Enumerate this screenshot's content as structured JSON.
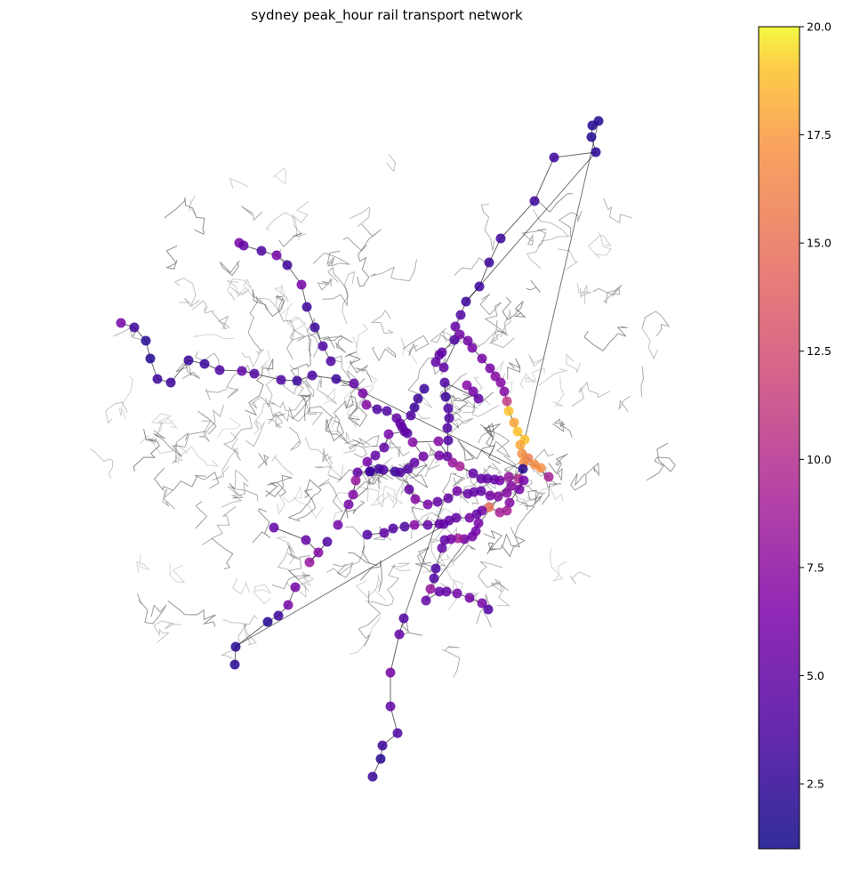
{
  "chart_data": {
    "type": "scatter",
    "title": "sydney peak_hour rail transport network",
    "colormap": "plasma",
    "colorbar": {
      "range": [
        1,
        20
      ],
      "ticks": [
        2.5,
        5.0,
        7.5,
        10.0,
        12.5,
        15.0,
        17.5,
        20.0
      ],
      "tick_labels": [
        "2.5",
        "5.0",
        "7.5",
        "10.0",
        "12.5",
        "15.0",
        "17.5",
        "20.0"
      ]
    },
    "axes_visible": false,
    "grid": false,
    "background_network_color": "#000000",
    "stations": [
      [
        136,
        363,
        6
      ],
      [
        151,
        368,
        3
      ],
      [
        164,
        383,
        2
      ],
      [
        169,
        403,
        2
      ],
      [
        177,
        426,
        3
      ],
      [
        192,
        430,
        3
      ],
      [
        212,
        405,
        3
      ],
      [
        230,
        409,
        3
      ],
      [
        247,
        416,
        4
      ],
      [
        272,
        417,
        5
      ],
      [
        286,
        420,
        4
      ],
      [
        316,
        427,
        4
      ],
      [
        334,
        428,
        3
      ],
      [
        351,
        422,
        4
      ],
      [
        378,
        426,
        3
      ],
      [
        398,
        431,
        5
      ],
      [
        408,
        442,
        6
      ],
      [
        412,
        455,
        7
      ],
      [
        424,
        460,
        4
      ],
      [
        435,
        462,
        4
      ],
      [
        446,
        470,
        5
      ],
      [
        452,
        480,
        4
      ],
      [
        458,
        487,
        4
      ],
      [
        269,
        273,
        6
      ],
      [
        274,
        276,
        5
      ],
      [
        294,
        282,
        4
      ],
      [
        311,
        287,
        6
      ],
      [
        323,
        298,
        3
      ],
      [
        339,
        320,
        6
      ],
      [
        345,
        345,
        3
      ],
      [
        354,
        368,
        3
      ],
      [
        363,
        389,
        4
      ],
      [
        372,
        406,
        4
      ],
      [
        673,
        136,
        2
      ],
      [
        666,
        141,
        2
      ],
      [
        665,
        154,
        2
      ],
      [
        670,
        171,
        2
      ],
      [
        623,
        177,
        3
      ],
      [
        601,
        226,
        3
      ],
      [
        563,
        268,
        3
      ],
      [
        550,
        295,
        3
      ],
      [
        539,
        322,
        3
      ],
      [
        524,
        339,
        3
      ],
      [
        518,
        354,
        4
      ],
      [
        512,
        367,
        5
      ],
      [
        511,
        382,
        4
      ],
      [
        497,
        396,
        5
      ],
      [
        494,
        399,
        5
      ],
      [
        490,
        407,
        5
      ],
      [
        499,
        413,
        5
      ],
      [
        517,
        376,
        6
      ],
      [
        526,
        383,
        6
      ],
      [
        531,
        391,
        6
      ],
      [
        542,
        403,
        6
      ],
      [
        551,
        414,
        6
      ],
      [
        557,
        423,
        7
      ],
      [
        563,
        430,
        7
      ],
      [
        567,
        440,
        7
      ],
      [
        570,
        451,
        11
      ],
      [
        572,
        462,
        19
      ],
      [
        578,
        475,
        18
      ],
      [
        582,
        485,
        19
      ],
      [
        590,
        494,
        19
      ],
      [
        585,
        500,
        18
      ],
      [
        594,
        515,
        16
      ],
      [
        601,
        522,
        17
      ],
      [
        608,
        526,
        17
      ],
      [
        589,
        520,
        17
      ],
      [
        587,
        510,
        17
      ],
      [
        617,
        536,
        9
      ],
      [
        525,
        433,
        7
      ],
      [
        532,
        440,
        6
      ],
      [
        538,
        448,
        5
      ],
      [
        500,
        430,
        4
      ],
      [
        501,
        446,
        3
      ],
      [
        504,
        459,
        4
      ],
      [
        505,
        470,
        4
      ],
      [
        503,
        481,
        4
      ],
      [
        504,
        495,
        4
      ],
      [
        503,
        513,
        5
      ],
      [
        494,
        512,
        6
      ],
      [
        477,
        437,
        3
      ],
      [
        470,
        448,
        3
      ],
      [
        466,
        458,
        3
      ],
      [
        462,
        467,
        4
      ],
      [
        450,
        476,
        5
      ],
      [
        455,
        485,
        5
      ],
      [
        437,
        488,
        6
      ],
      [
        432,
        503,
        5
      ],
      [
        422,
        512,
        5
      ],
      [
        413,
        519,
        6
      ],
      [
        416,
        530,
        4
      ],
      [
        402,
        531,
        5
      ],
      [
        400,
        540,
        8
      ],
      [
        397,
        556,
        7
      ],
      [
        392,
        567,
        6
      ],
      [
        380,
        590,
        6
      ],
      [
        308,
        593,
        5
      ],
      [
        344,
        607,
        5
      ],
      [
        358,
        621,
        7
      ],
      [
        348,
        632,
        8
      ],
      [
        368,
        609,
        4
      ],
      [
        332,
        660,
        6
      ],
      [
        324,
        680,
        6
      ],
      [
        313,
        692,
        3
      ],
      [
        301,
        699,
        2
      ],
      [
        265,
        727,
        2
      ],
      [
        264,
        747,
        2
      ],
      [
        416,
        530,
        3
      ],
      [
        426,
        527,
        3
      ],
      [
        431,
        528,
        4
      ],
      [
        444,
        530,
        3
      ],
      [
        450,
        531,
        4
      ],
      [
        459,
        527,
        4
      ],
      [
        466,
        520,
        5
      ],
      [
        476,
        513,
        6
      ],
      [
        464,
        497,
        7
      ],
      [
        493,
        496,
        7
      ],
      [
        509,
        520,
        8
      ],
      [
        517,
        524,
        9
      ],
      [
        532,
        532,
        5
      ],
      [
        541,
        538,
        5
      ],
      [
        548,
        538,
        5
      ],
      [
        556,
        539,
        5
      ],
      [
        562,
        540,
        6
      ],
      [
        572,
        536,
        8
      ],
      [
        583,
        538,
        10
      ],
      [
        588,
        527,
        2
      ],
      [
        584,
        550,
        6
      ],
      [
        460,
        550,
        5
      ],
      [
        467,
        561,
        7
      ],
      [
        481,
        567,
        6
      ],
      [
        492,
        564,
        5
      ],
      [
        504,
        560,
        5
      ],
      [
        514,
        552,
        6
      ],
      [
        526,
        555,
        5
      ],
      [
        533,
        553,
        5
      ],
      [
        541,
        552,
        5
      ],
      [
        551,
        557,
        6
      ],
      [
        560,
        558,
        7
      ],
      [
        570,
        554,
        7
      ],
      [
        575,
        546,
        7
      ],
      [
        589,
        540,
        6
      ],
      [
        573,
        565,
        7
      ],
      [
        570,
        574,
        9
      ],
      [
        562,
        576,
        9
      ],
      [
        550,
        570,
        15
      ],
      [
        542,
        574,
        6
      ],
      [
        536,
        578,
        5
      ],
      [
        528,
        582,
        6
      ],
      [
        513,
        582,
        5
      ],
      [
        505,
        585,
        5
      ],
      [
        499,
        589,
        5
      ],
      [
        494,
        589,
        5
      ],
      [
        481,
        590,
        5
      ],
      [
        466,
        590,
        7
      ],
      [
        455,
        592,
        4
      ],
      [
        442,
        594,
        4
      ],
      [
        432,
        599,
        5
      ],
      [
        413,
        601,
        4
      ],
      [
        538,
        588,
        6
      ],
      [
        535,
        597,
        6
      ],
      [
        531,
        603,
        6
      ],
      [
        522,
        606,
        6
      ],
      [
        515,
        605,
        9
      ],
      [
        507,
        606,
        6
      ],
      [
        500,
        607,
        5
      ],
      [
        497,
        616,
        5
      ],
      [
        490,
        639,
        4
      ],
      [
        488,
        650,
        4
      ],
      [
        484,
        662,
        8
      ],
      [
        479,
        675,
        5
      ],
      [
        494,
        665,
        5
      ],
      [
        502,
        665,
        5
      ],
      [
        514,
        667,
        6
      ],
      [
        528,
        672,
        6
      ],
      [
        542,
        678,
        6
      ],
      [
        549,
        685,
        4
      ],
      [
        454,
        695,
        4
      ],
      [
        449,
        713,
        5
      ],
      [
        439,
        756,
        6
      ],
      [
        439,
        794,
        5
      ],
      [
        447,
        824,
        4
      ],
      [
        430,
        838,
        3
      ],
      [
        428,
        853,
        2
      ],
      [
        419,
        873,
        3
      ]
    ]
  }
}
